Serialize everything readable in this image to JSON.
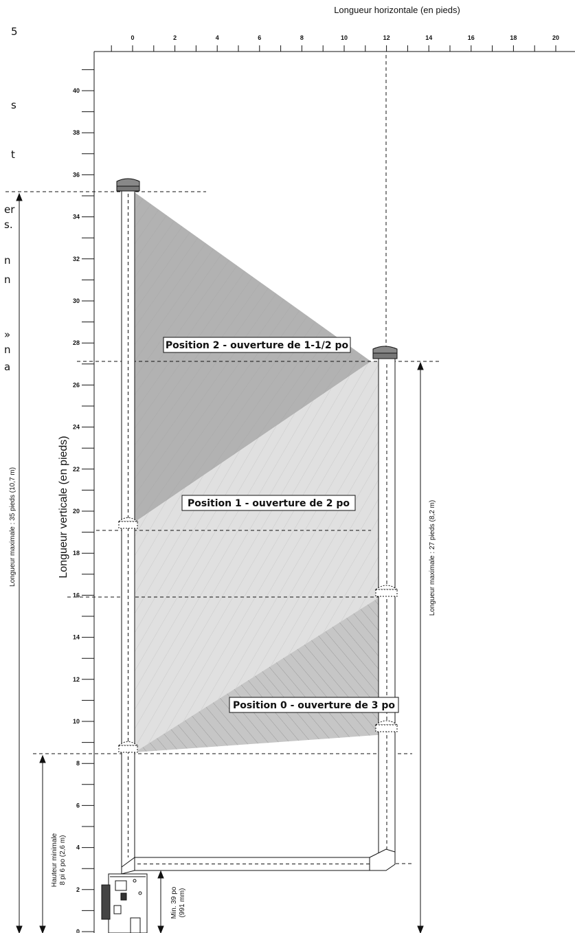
{
  "axes": {
    "x_title": "Longueur horizontale (en pieds)",
    "y_title": "Longueur verticale (en pieds)",
    "x_ticks": [
      "0",
      "2",
      "4",
      "6",
      "8",
      "10",
      "12",
      "14",
      "16",
      "18",
      "20"
    ],
    "y_ticks": [
      "0",
      "2",
      "4",
      "6",
      "8",
      "10",
      "12",
      "14",
      "16",
      "18",
      "20",
      "22",
      "24",
      "26",
      "28",
      "30",
      "32",
      "34",
      "36",
      "38",
      "40"
    ]
  },
  "zones": {
    "position_2": "Position 2 -  ouverture de 1-1/2 po",
    "position_1": "Position 1 - ouverture de 2 po",
    "position_0": "Position 0 - ouverture de 3 po"
  },
  "dimensions": {
    "left_max": "Longueur maximale : 35 pieds (10,7 m)",
    "right_max": "Longueur maximale : 27 pieds (8,2 m)",
    "min_height_line1": "Hauteur minimale",
    "min_height_line2": "8 pi 6 po (2,6 m)",
    "min_line1": "Min. 39 po",
    "min_line2": "(991 mm)"
  },
  "cut_text_fragments": [
    "5",
    "s",
    "t",
    "er",
    "s.",
    "n",
    "n",
    "»",
    "n",
    "a"
  ]
}
